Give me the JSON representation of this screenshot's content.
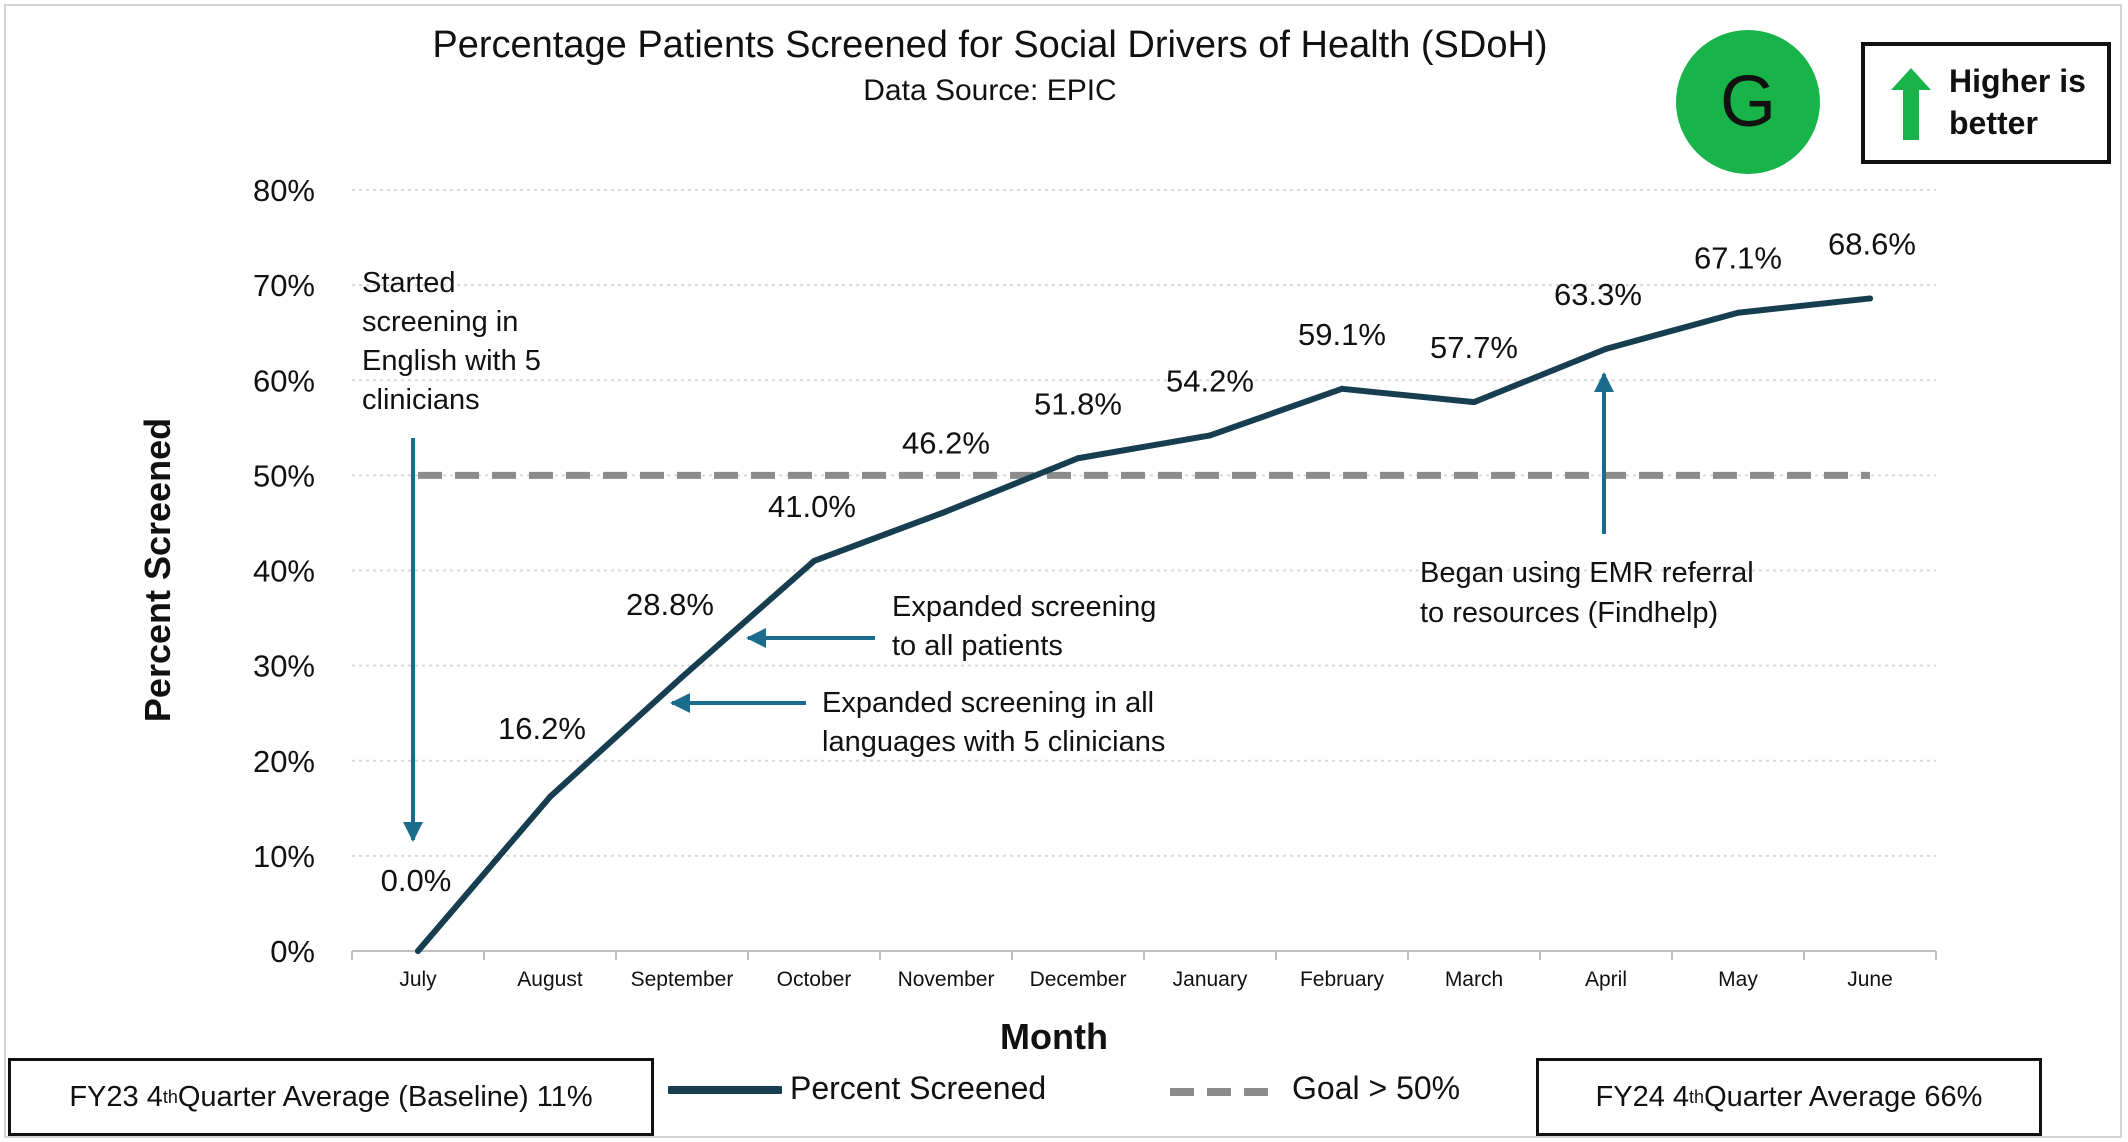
{
  "header": {
    "title": "Percentage Patients Screened for Social Drivers of Health (SDoH)",
    "subtitle": "Data Source: EPIC"
  },
  "rating": {
    "letter": "G",
    "color": "#18b44a"
  },
  "direction_note": {
    "text": "Higher is better",
    "line1": "Higher is",
    "line2": "better",
    "icon": "up-arrow-icon",
    "color": "#18b44a"
  },
  "footer": {
    "baseline": {
      "prefix": "FY23 4",
      "sup": "th",
      "suffix": " Quarter Average (Baseline) 11%"
    },
    "current": {
      "prefix": "FY24 4",
      "sup": "th",
      "suffix": " Quarter Average 66%"
    }
  },
  "chart_data": {
    "type": "line",
    "title": "Percentage Patients Screened for Social Drivers of Health (SDoH)",
    "subtitle": "Data Source: EPIC",
    "xlabel": "Month",
    "ylabel": "Percent Screened",
    "categories": [
      "July",
      "August",
      "September",
      "October",
      "November",
      "December",
      "January",
      "February",
      "March",
      "April",
      "May",
      "June"
    ],
    "series": [
      {
        "name": "Percent Screened",
        "values": [
          0.0,
          16.2,
          28.8,
          41.0,
          46.2,
          51.8,
          54.2,
          59.1,
          57.7,
          63.3,
          67.1,
          68.6
        ],
        "color": "#173e50",
        "style": "solid"
      },
      {
        "name": "Goal > 50%",
        "values": [
          50,
          50,
          50,
          50,
          50,
          50,
          50,
          50,
          50,
          50,
          50,
          50
        ],
        "color": "#8c8c8c",
        "style": "dashed"
      }
    ],
    "data_labels": [
      "0.0%",
      "16.2%",
      "28.8%",
      "41.0%",
      "46.2%",
      "51.8%",
      "54.2%",
      "59.1%",
      "57.7%",
      "63.3%",
      "67.1%",
      "68.6%"
    ],
    "yticks": [
      "0%",
      "10%",
      "20%",
      "30%",
      "40%",
      "50%",
      "60%",
      "70%",
      "80%"
    ],
    "ylim": [
      0,
      80
    ],
    "grid": "horizontal dotted",
    "legend_position": "bottom",
    "annotations": [
      {
        "name": "started-screening",
        "lines": [
          "Started",
          "screening in",
          "English with 5",
          "clinicians"
        ],
        "target_month": "July",
        "target_value": 0,
        "arrow": "down"
      },
      {
        "name": "expanded-all-patients",
        "lines": [
          "Expanded screening",
          "to all patients"
        ],
        "target_month": "September",
        "target_value": 33,
        "arrow": "left"
      },
      {
        "name": "expanded-languages",
        "lines": [
          "Expanded screening in all",
          "languages with 5 clinicians"
        ],
        "target_month": "September",
        "target_value": 26,
        "arrow": "left"
      },
      {
        "name": "emr-referral",
        "lines": [
          "Began using EMR referral",
          "to resources (Findhelp)"
        ],
        "target_month": "April",
        "target_value": 61,
        "arrow": "up"
      }
    ],
    "annotation_color": "#1b6c8c"
  }
}
